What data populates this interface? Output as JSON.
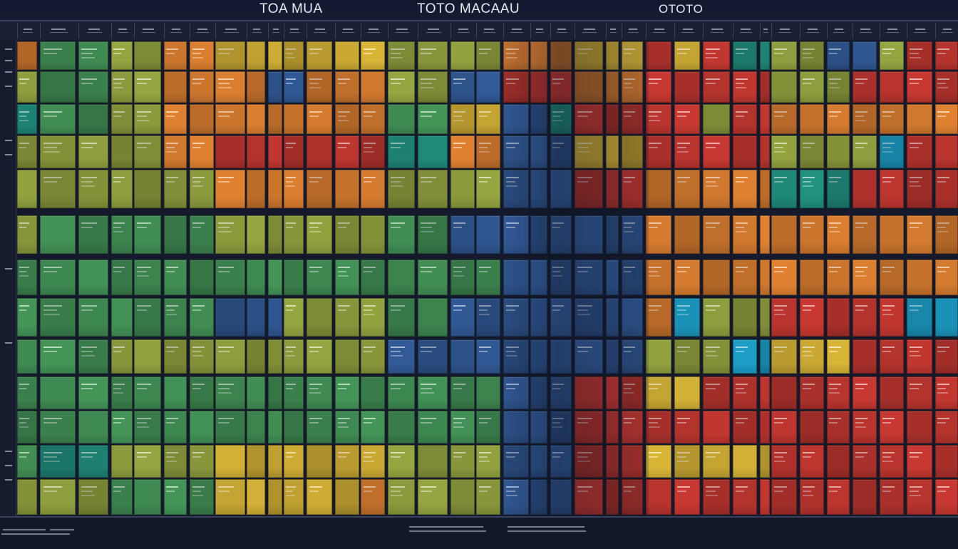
{
  "titles": [
    "TOA MUA",
    "TOTO MACAAU",
    "OTOTO"
  ],
  "palette": {
    "navy": "#141a2c",
    "green": "#3f8a52",
    "olive": "#8a9a3c",
    "yellow": "#c9a833",
    "orange": "#d0782e",
    "red": "#b8342e",
    "blue": "#2f5690",
    "teal": "#1f8a7a",
    "cyan": "#1b9ac2"
  }
}
